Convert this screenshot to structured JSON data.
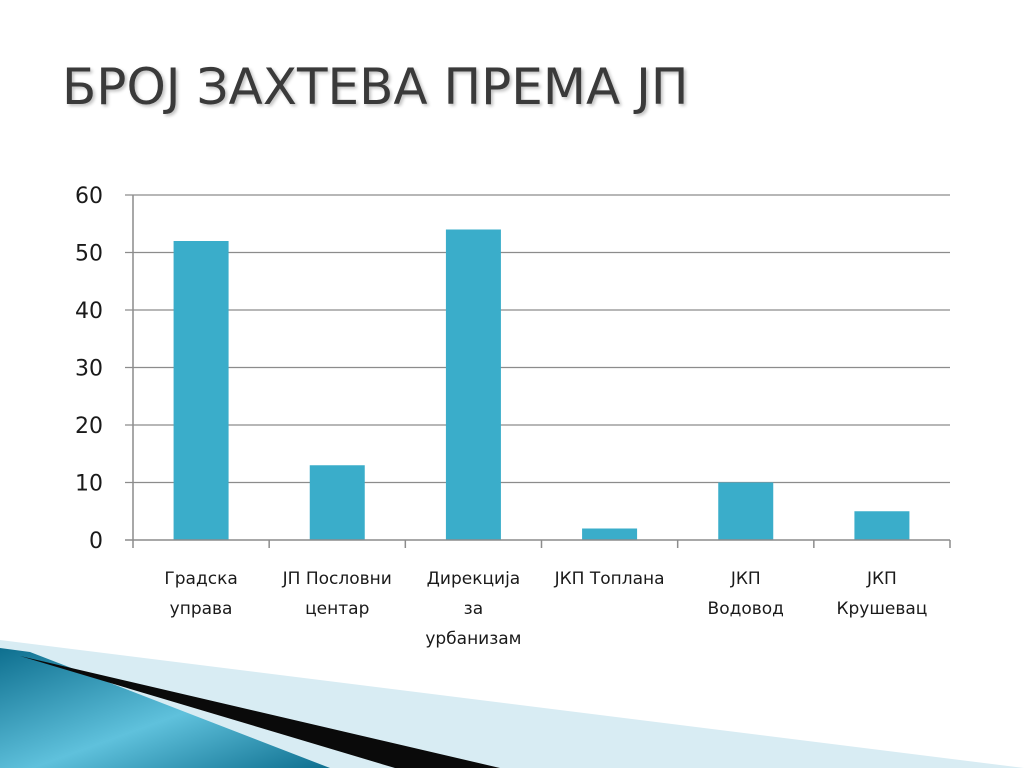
{
  "slide": {
    "title": "БРОЈ ЗАХТЕВА ПРЕМА ЈП"
  },
  "chart_data": {
    "type": "bar",
    "title": "",
    "xlabel": "",
    "ylabel": "",
    "categories": [
      [
        "Градска",
        "управа"
      ],
      [
        "ЈП Пословни",
        "центар"
      ],
      [
        "Дирекција",
        "за",
        "урбанизам"
      ],
      [
        "ЈКП Топлана"
      ],
      [
        "ЈКП",
        "Водовод"
      ],
      [
        "ЈКП",
        "Крушевац"
      ]
    ],
    "values": [
      52,
      13,
      54,
      2,
      10,
      5
    ],
    "ylim": [
      0,
      60
    ],
    "yticks": [
      0,
      10,
      20,
      30,
      40,
      50,
      60
    ],
    "grid": true,
    "legend": "none",
    "colors": {
      "bar": "#3aadca",
      "grid": "#8c8c8c",
      "axis": "#8c8c8c"
    }
  },
  "decor": {
    "swoosh_colors": [
      "#0e6f8f",
      "#5fc1dc",
      "#0a0a0a",
      "#d8ecf3"
    ]
  }
}
